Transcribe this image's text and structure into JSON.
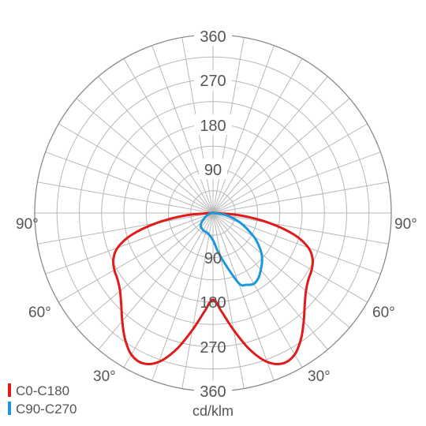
{
  "chart_data": {
    "type": "polar",
    "unit_label": "cd/klm",
    "radial_ticks": [
      "90",
      "180",
      "270",
      "360"
    ],
    "radial_max": 360,
    "angle_labels": [
      "90°",
      "60°",
      "30°",
      "90°",
      "60°",
      "30°"
    ],
    "grid": true,
    "legend_position": "bottom-left",
    "series": [
      {
        "name": "C0-C180",
        "color": "#e01b1b",
        "symmetric": true,
        "points": [
          {
            "angle": 0,
            "value": 175
          },
          {
            "angle": 5,
            "value": 200
          },
          {
            "angle": 10,
            "value": 240
          },
          {
            "angle": 15,
            "value": 285
          },
          {
            "angle": 20,
            "value": 320
          },
          {
            "angle": 25,
            "value": 335
          },
          {
            "angle": 30,
            "value": 330
          },
          {
            "angle": 35,
            "value": 310
          },
          {
            "angle": 40,
            "value": 285
          },
          {
            "angle": 45,
            "value": 262
          },
          {
            "angle": 50,
            "value": 245
          },
          {
            "angle": 55,
            "value": 235
          },
          {
            "angle": 60,
            "value": 230
          },
          {
            "angle": 65,
            "value": 222
          },
          {
            "angle": 70,
            "value": 205
          },
          {
            "angle": 75,
            "value": 170
          },
          {
            "angle": 80,
            "value": 115
          },
          {
            "angle": 85,
            "value": 55
          },
          {
            "angle": 90,
            "value": 2
          }
        ]
      },
      {
        "name": "C90-C270",
        "color": "#1d97dc",
        "points": [
          {
            "angle": -90,
            "value": 2
          },
          {
            "angle": -75,
            "value": 8
          },
          {
            "angle": -60,
            "value": 20
          },
          {
            "angle": -45,
            "value": 35
          },
          {
            "angle": -30,
            "value": 40
          },
          {
            "angle": -15,
            "value": 42
          },
          {
            "angle": 0,
            "value": 55
          },
          {
            "angle": 10,
            "value": 90
          },
          {
            "angle": 20,
            "value": 150
          },
          {
            "angle": 25,
            "value": 160
          },
          {
            "angle": 30,
            "value": 165
          },
          {
            "angle": 35,
            "value": 160
          },
          {
            "angle": 40,
            "value": 150
          },
          {
            "angle": 45,
            "value": 140
          },
          {
            "angle": 50,
            "value": 128
          },
          {
            "angle": 55,
            "value": 112
          },
          {
            "angle": 60,
            "value": 95
          },
          {
            "angle": 70,
            "value": 60
          },
          {
            "angle": 80,
            "value": 28
          },
          {
            "angle": 90,
            "value": 2
          }
        ]
      }
    ]
  }
}
